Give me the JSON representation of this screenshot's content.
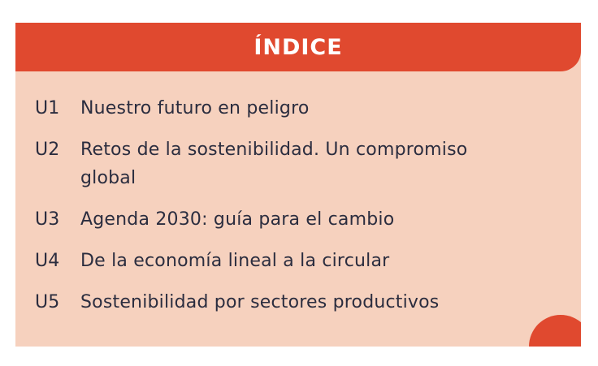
{
  "card": {
    "header": {
      "title": "ÍNDICE"
    },
    "items": [
      {
        "code": "U1",
        "title": "Nuestro futuro en peligro"
      },
      {
        "code": "U2",
        "title": "Retos de la sostenibilidad. Un compromiso\nglobal"
      },
      {
        "code": "U3",
        "title": "Agenda 2030: guía para el cambio"
      },
      {
        "code": "U4",
        "title": "De la economía lineal a la circular"
      },
      {
        "code": "U5",
        "title": "Sostenibilidad por sectores productivos"
      }
    ]
  },
  "colors": {
    "accent_red": "#E0492F",
    "panel_peach": "#F6D1BE",
    "text_dark": "#2B2D3F",
    "title_white": "#FFFFFF"
  }
}
